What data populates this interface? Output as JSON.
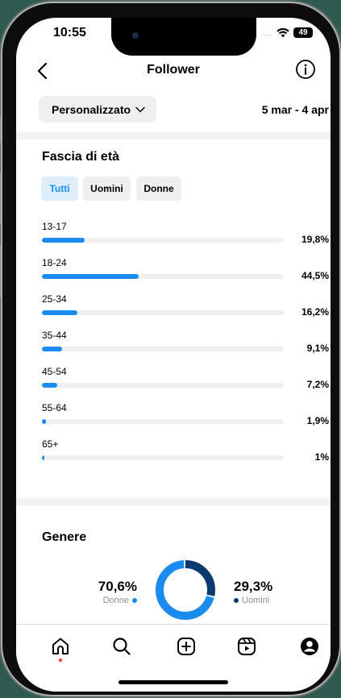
{
  "status_bar": {
    "time": "10:55",
    "signal": "....",
    "battery": "49"
  },
  "header": {
    "title": "Follower"
  },
  "filter": {
    "range_label": "Personalizzato",
    "date_range": "5 mar - 4 apr"
  },
  "age_section": {
    "title": "Fascia di età",
    "segments": [
      {
        "label": "Tutti",
        "active": true
      },
      {
        "label": "Uomini",
        "active": false
      },
      {
        "label": "Donne",
        "active": false
      }
    ],
    "rows": [
      {
        "label": "13-17",
        "value": "19,8%",
        "fraction": 0.198
      },
      {
        "label": "18-24",
        "value": "44,5%",
        "fraction": 0.445
      },
      {
        "label": "25-34",
        "value": "16,2%",
        "fraction": 0.162
      },
      {
        "label": "35-44",
        "value": "9,1%",
        "fraction": 0.091
      },
      {
        "label": "45-54",
        "value": "7,2%",
        "fraction": 0.072
      },
      {
        "label": "55-64",
        "value": "1,9%",
        "fraction": 0.019
      },
      {
        "label": "65+",
        "value": "1%",
        "fraction": 0.01
      }
    ]
  },
  "gender_section": {
    "title": "Genere",
    "women": {
      "percent": "70,6%",
      "label": "Donne",
      "fraction": 0.706,
      "color": "#1a8cf0"
    },
    "men": {
      "percent": "29,3%",
      "label": "Uomini",
      "fraction": 0.293,
      "color": "#0b3a6e"
    }
  },
  "colors": {
    "accent": "#1a8cf0",
    "dark_accent": "#0b3a6e",
    "track": "#efefef",
    "notification": "#ff3040"
  },
  "tabs": [
    {
      "name": "home",
      "icon": "home-icon",
      "active": true
    },
    {
      "name": "search",
      "icon": "search-icon"
    },
    {
      "name": "create",
      "icon": "plus-square-icon"
    },
    {
      "name": "reels",
      "icon": "reels-icon"
    },
    {
      "name": "profile",
      "icon": "profile-icon"
    }
  ]
}
